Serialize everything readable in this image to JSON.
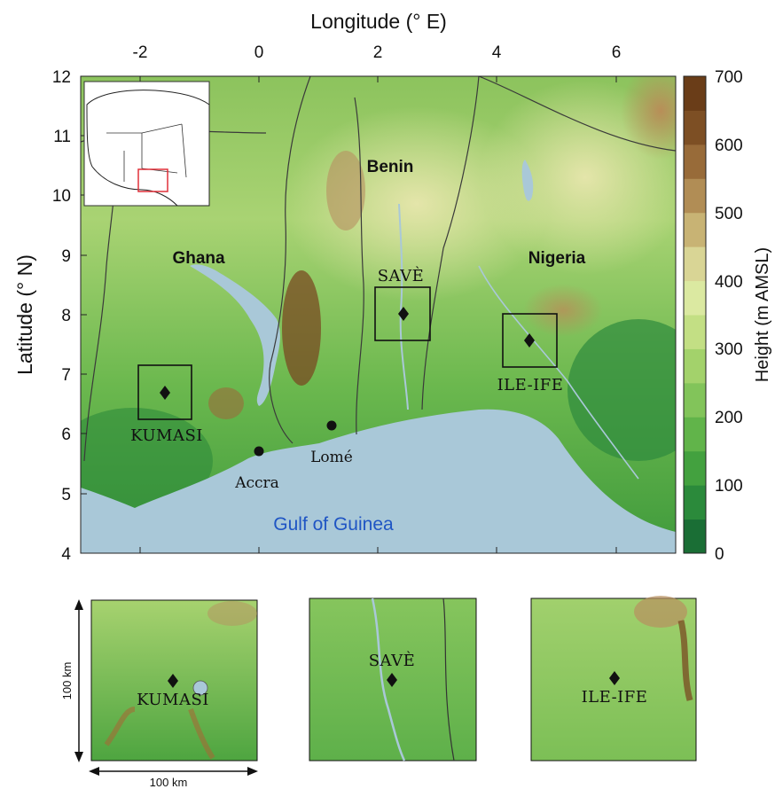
{
  "map": {
    "axis_x_label": "Longitude (° E)",
    "axis_y_label": "Latitude (° N)",
    "x_ticks": [
      "-2",
      "0",
      "2",
      "4",
      "6"
    ],
    "y_ticks": [
      "12",
      "11",
      "10",
      "9",
      "8",
      "7",
      "6",
      "5",
      "4"
    ],
    "extent": {
      "lon": [
        -3,
        7
      ],
      "lat": [
        4,
        12
      ]
    },
    "countries": [
      "Ghana",
      "Benin",
      "Nigeria"
    ],
    "sea_label": "Gulf of Guinea",
    "sites": [
      {
        "name": "KUMASI",
        "lon": -1.6,
        "lat": 6.7
      },
      {
        "name": "SAVÈ",
        "lon": 2.45,
        "lat": 8.0
      },
      {
        "name": "ILE-IFE",
        "lon": 4.55,
        "lat": 7.55
      }
    ],
    "cities": [
      {
        "name": "Accra",
        "lon": 0.0,
        "lat": 5.7
      },
      {
        "name": "Lomé",
        "lon": 1.2,
        "lat": 6.1
      }
    ]
  },
  "colorbar": {
    "label": "Height (m AMSL)",
    "ticks": [
      "700",
      "600",
      "500",
      "400",
      "300",
      "200",
      "100",
      "0"
    ],
    "range": [
      0,
      700
    ],
    "colors": [
      "#1a6e35",
      "#2b8a3b",
      "#43a13f",
      "#61b44a",
      "#82c45a",
      "#a3d26b",
      "#c3df84",
      "#dbe9a1",
      "#d9d595",
      "#c8b374",
      "#b18d55",
      "#986b39",
      "#7d4f24",
      "#6a3d18"
    ]
  },
  "insets": {
    "scale_label_vertical": "100 km",
    "scale_label_horizontal": "100 km",
    "panels": [
      "KUMASI",
      "SAVÈ",
      "ILE-IFE"
    ]
  },
  "colors": {
    "water": "#a9c8d8",
    "inset_highlight": "#e0303a",
    "sea_label": "#1f55c4"
  }
}
